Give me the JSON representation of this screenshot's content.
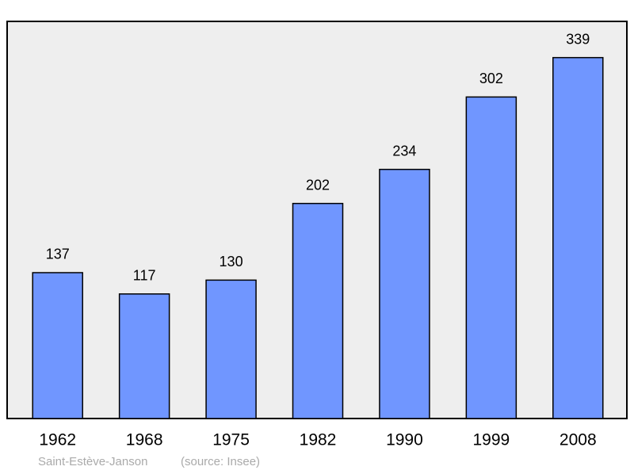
{
  "chart_data": {
    "type": "bar",
    "categories": [
      "1962",
      "1968",
      "1975",
      "1982",
      "1990",
      "1999",
      "2008"
    ],
    "values": [
      137,
      117,
      130,
      202,
      234,
      302,
      339
    ],
    "color": "#7096ff",
    "ylim": [
      0,
      373
    ],
    "caption": "Saint-Estève-Janson",
    "source": "(source: Insee)"
  }
}
